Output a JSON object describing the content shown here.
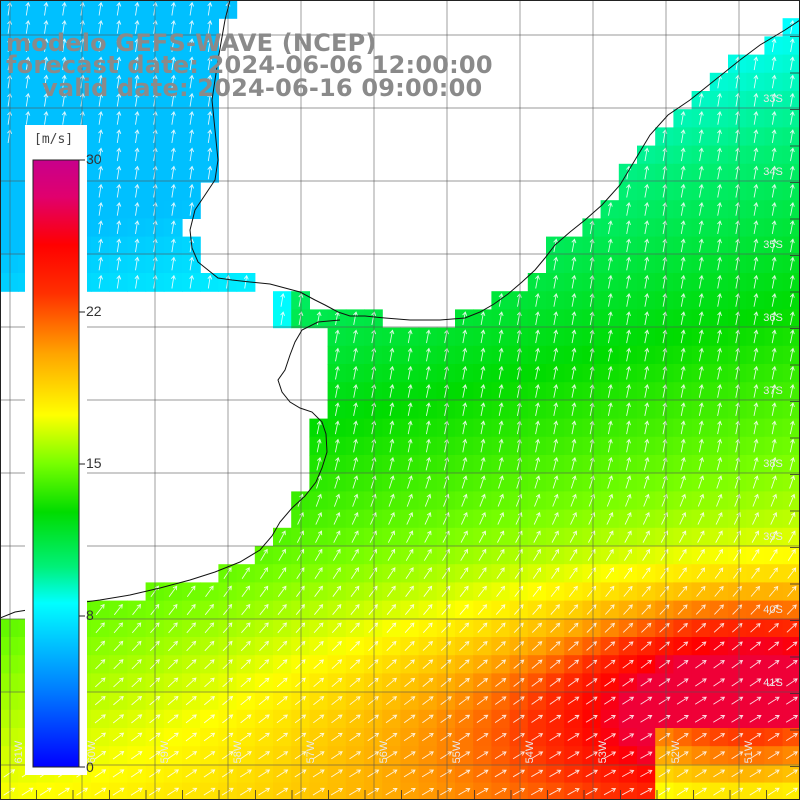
{
  "title": {
    "model": "modelo GEFS-WAVE (NCEP)",
    "forecast": "forecast date: 2024-06-06 12:00:00",
    "valid": "valid date: 2024-06-16 09:00:00"
  },
  "colorbar": {
    "unit": "[m/s]",
    "ticks": [
      "30",
      "22",
      "15",
      "8",
      "0"
    ],
    "range": [
      0,
      30
    ],
    "colors": [
      "#0000ff",
      "#0080ff",
      "#00ffff",
      "#00ff80",
      "#00e000",
      "#80ff00",
      "#ffff00",
      "#ffa000",
      "#ff3000",
      "#ff0000",
      "#e0006e",
      "#c8008c"
    ]
  },
  "map": {
    "lat_labels": [
      "33S",
      "34S",
      "35S",
      "36S",
      "37S",
      "38S",
      "39S",
      "40S",
      "41S"
    ],
    "lon_labels": [
      "61W",
      "60W",
      "59W",
      "58W",
      "57W",
      "56W",
      "55W",
      "54W",
      "53W",
      "52W",
      "51W"
    ],
    "field": "wind speed (m/s) with direction arrows"
  }
}
